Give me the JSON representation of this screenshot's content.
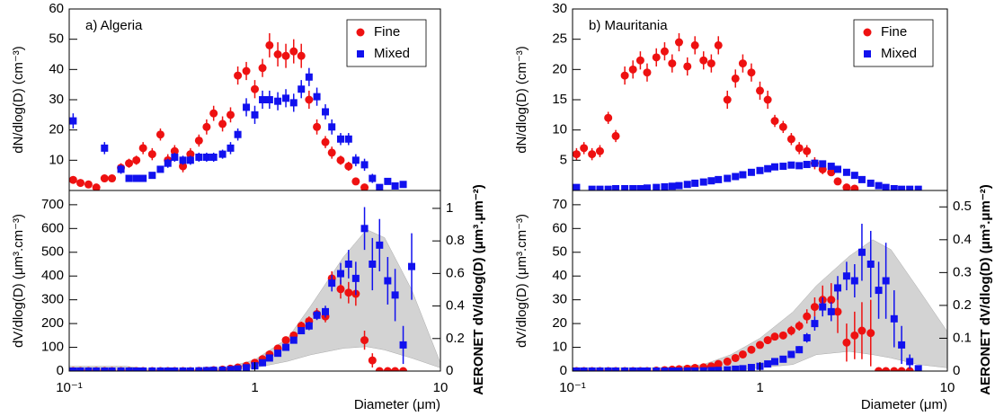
{
  "chart_data": [
    {
      "type": "scatter",
      "panel_label": "a) Algeria",
      "ylabel": "dN/dlog(D) (cm⁻³)",
      "xlog": true,
      "xlim": [
        0.1,
        10
      ],
      "ylim": [
        0,
        60
      ],
      "yticks": [
        10,
        20,
        30,
        40,
        50,
        60
      ],
      "legend": "upper right",
      "x": [
        0.105,
        0.115,
        0.127,
        0.14,
        0.155,
        0.17,
        0.19,
        0.21,
        0.23,
        0.25,
        0.28,
        0.31,
        0.34,
        0.37,
        0.41,
        0.45,
        0.5,
        0.55,
        0.6,
        0.67,
        0.74,
        0.81,
        0.9,
        1.0,
        1.1,
        1.2,
        1.33,
        1.47,
        1.62,
        1.78,
        1.96,
        2.16,
        2.4,
        2.6,
        2.9,
        3.2,
        3.5,
        3.9,
        4.3,
        4.7,
        5.2,
        5.7,
        6.3,
        7.0
      ],
      "series": [
        {
          "name": "Fine",
          "color": "#ee1111",
          "marker": "circle",
          "values": [
            3.5,
            2.5,
            2,
            1,
            4,
            4,
            7.5,
            9,
            10,
            14,
            12,
            18.5,
            10,
            13,
            8,
            12,
            16.5,
            21,
            25.5,
            22,
            25,
            38,
            39.5,
            33.5,
            40.5,
            48,
            45,
            44.5,
            46,
            44.5,
            30,
            21,
            16,
            12.5,
            10,
            8,
            3,
            1,
            null,
            null,
            null,
            null,
            null,
            null
          ],
          "errors": [
            1,
            1,
            1,
            1,
            1,
            1,
            1.5,
            1.5,
            1.5,
            2,
            2,
            2,
            2,
            2,
            2,
            2,
            2,
            2.5,
            2.5,
            2.5,
            2.5,
            3,
            3,
            3,
            3,
            4,
            4,
            4,
            4,
            4,
            3,
            2.5,
            2,
            2,
            1.5,
            1.5,
            1,
            1,
            null,
            null,
            null,
            null,
            null,
            null
          ]
        },
        {
          "name": "Mixed",
          "color": "#1111ee",
          "marker": "square",
          "values": [
            23,
            null,
            null,
            null,
            14,
            null,
            7,
            4,
            4,
            4,
            5,
            7,
            9,
            11,
            10,
            10,
            11,
            11,
            11,
            12,
            14,
            18.5,
            27.5,
            25,
            30,
            30,
            29.5,
            30.5,
            29,
            33.5,
            37.5,
            31,
            26,
            21,
            17,
            17,
            10,
            8.5,
            4,
            1,
            3,
            1.5,
            2,
            null
          ],
          "errors": [
            2.5,
            null,
            null,
            null,
            2,
            null,
            1.5,
            1,
            1,
            1,
            1,
            1,
            1.5,
            1.5,
            1.5,
            1.5,
            1.5,
            1.5,
            1.5,
            1.5,
            2,
            2,
            3,
            3,
            3,
            3,
            3,
            3,
            3,
            3,
            3,
            3,
            2.5,
            2.5,
            2,
            2,
            2,
            2,
            1.5,
            1,
            1,
            1,
            1,
            null
          ]
        }
      ]
    },
    {
      "type": "scatter",
      "ylabel": "dV/dlog(D) (μm³.cm⁻³)",
      "y2label": "AERONET dV/dlog(D) (μm³.μm⁻²)",
      "xlabel": "Diameter (μm)",
      "xlog": true,
      "xlim": [
        0.1,
        10
      ],
      "xticks": [
        {
          "value": 0.1,
          "label": "10⁻¹"
        },
        1,
        10
      ],
      "ylim": [
        0,
        760
      ],
      "yticks": [
        0,
        100,
        200,
        300,
        400,
        500,
        600,
        700
      ],
      "y2lim": [
        0,
        1.11
      ],
      "y2ticks": [
        0,
        0.2,
        0.4,
        0.6,
        0.8,
        1
      ],
      "band": {
        "axis": "y2",
        "color": "#c4c4c4",
        "x": [
          0.1,
          0.2,
          0.3,
          0.5,
          0.7,
          1,
          1.5,
          2,
          3,
          4,
          5,
          7,
          10
        ],
        "upper": [
          0.03,
          0.03,
          0.01,
          0.01,
          0.02,
          0.07,
          0.2,
          0.4,
          0.7,
          0.87,
          0.82,
          0.5,
          0.05
        ],
        "lower": [
          0,
          0,
          0,
          0,
          0,
          0.02,
          0.06,
          0.1,
          0.14,
          0.15,
          0.13,
          0.08,
          0.02
        ]
      },
      "x": [
        0.105,
        0.115,
        0.127,
        0.14,
        0.155,
        0.17,
        0.19,
        0.21,
        0.23,
        0.25,
        0.28,
        0.31,
        0.34,
        0.37,
        0.41,
        0.45,
        0.5,
        0.55,
        0.6,
        0.67,
        0.74,
        0.81,
        0.9,
        1.0,
        1.1,
        1.2,
        1.33,
        1.47,
        1.62,
        1.78,
        1.96,
        2.16,
        2.4,
        2.6,
        2.9,
        3.2,
        3.5,
        3.9,
        4.3,
        4.7,
        5.2,
        5.7,
        6.3,
        7.0
      ],
      "series": [
        {
          "name": "Fine",
          "color": "#ee1111",
          "marker": "circle",
          "values": [
            0,
            0,
            0,
            0,
            0,
            0,
            0,
            0,
            0,
            0,
            0,
            0,
            0,
            0,
            0,
            0,
            1,
            2,
            4,
            6,
            10,
            15,
            22,
            35,
            50,
            70,
            95,
            130,
            150,
            190,
            210,
            240,
            230,
            390,
            345,
            330,
            325,
            130,
            45,
            0,
            0,
            0,
            0,
            null
          ],
          "errors": [
            0,
            0,
            0,
            0,
            0,
            0,
            0,
            0,
            0,
            0,
            0,
            0,
            0,
            0,
            0,
            0,
            0,
            0,
            1,
            1,
            2,
            2,
            3,
            4,
            5,
            7,
            9,
            12,
            15,
            18,
            20,
            25,
            25,
            30,
            40,
            45,
            50,
            40,
            30,
            0,
            0,
            0,
            0,
            null
          ]
        },
        {
          "name": "Mixed",
          "color": "#1111ee",
          "marker": "square",
          "values": [
            0,
            0,
            0,
            0,
            0,
            0,
            0,
            0,
            0,
            0,
            0,
            0,
            0,
            0,
            0,
            0,
            1,
            2,
            3,
            4,
            6,
            9,
            14,
            22,
            35,
            55,
            75,
            100,
            130,
            170,
            190,
            235,
            250,
            370,
            410,
            450,
            390,
            600,
            450,
            530,
            380,
            320,
            110,
            440
          ],
          "errors": [
            0,
            0,
            0,
            0,
            0,
            0,
            0,
            0,
            0,
            0,
            0,
            0,
            0,
            0,
            0,
            0,
            0,
            0,
            0,
            1,
            1,
            2,
            2,
            3,
            4,
            5,
            7,
            9,
            12,
            15,
            18,
            20,
            25,
            35,
            45,
            60,
            70,
            90,
            110,
            110,
            100,
            110,
            80,
            140
          ]
        }
      ]
    },
    {
      "type": "scatter",
      "panel_label": "b) Mauritania",
      "ylabel": "dN/dlog(D) (cm⁻³)",
      "xlog": true,
      "xlim": [
        0.1,
        10
      ],
      "ylim": [
        0,
        30
      ],
      "yticks": [
        5,
        10,
        15,
        20,
        25,
        30
      ],
      "legend": "upper right",
      "x": [
        0.105,
        0.115,
        0.127,
        0.14,
        0.155,
        0.17,
        0.19,
        0.21,
        0.23,
        0.25,
        0.28,
        0.31,
        0.34,
        0.37,
        0.41,
        0.45,
        0.5,
        0.55,
        0.6,
        0.67,
        0.74,
        0.81,
        0.9,
        1.0,
        1.1,
        1.2,
        1.33,
        1.47,
        1.62,
        1.78,
        1.96,
        2.16,
        2.4,
        2.6,
        2.9,
        3.2,
        3.5,
        3.9,
        4.3,
        4.7,
        5.2,
        5.7,
        6.3,
        7.0
      ],
      "series": [
        {
          "name": "Fine",
          "color": "#ee1111",
          "marker": "circle",
          "values": [
            6,
            7,
            6,
            6.5,
            12,
            9,
            19,
            20,
            21.5,
            19.5,
            22,
            23,
            21,
            24.5,
            20.5,
            24,
            21.5,
            21,
            24,
            15,
            18.5,
            21,
            19.5,
            16.5,
            15,
            11.5,
            10.5,
            8.5,
            7,
            6.5,
            4.5,
            3.5,
            3,
            1.5,
            0.5,
            0.3,
            null,
            null,
            null,
            null,
            null,
            null,
            null,
            null
          ],
          "errors": [
            1,
            1,
            1,
            1,
            1,
            1,
            1.5,
            1.5,
            1.5,
            1.5,
            1.5,
            1.5,
            1.5,
            1.5,
            1.5,
            1.5,
            1.5,
            1.5,
            1.5,
            1.5,
            1.5,
            1.5,
            1.5,
            1.5,
            1.5,
            1,
            1,
            1,
            1,
            1,
            1,
            0.8,
            0.5,
            0.5,
            0.3,
            0.3,
            null,
            null,
            null,
            null,
            null,
            null,
            null,
            null
          ]
        },
        {
          "name": "Mixed",
          "color": "#1111ee",
          "marker": "square",
          "values": [
            0.5,
            null,
            0.2,
            0.2,
            0.2,
            0.3,
            0.3,
            0.3,
            0.3,
            0.4,
            0.5,
            0.6,
            0.7,
            0.8,
            1,
            1.2,
            1.4,
            1.6,
            1.8,
            2,
            2.3,
            2.6,
            3,
            3.3,
            3.6,
            3.9,
            4,
            4.2,
            4.1,
            4.3,
            4.5,
            4.4,
            4,
            3.5,
            3,
            2.5,
            1.8,
            1.2,
            0.8,
            0.5,
            0.3,
            0.2,
            0.2,
            0.2
          ]
        }
      ]
    },
    {
      "type": "scatter",
      "ylabel": "dV/dlog(D) (μm³.cm⁻³)",
      "y2label": "AERONET dV/dlog(D) (μm³.μm⁻²)",
      "xlabel": "Diameter (μm)",
      "xlog": true,
      "xlim": [
        0.1,
        10
      ],
      "xticks": [
        {
          "value": 0.1,
          "label": "10⁻¹"
        },
        1,
        10
      ],
      "ylim": [
        0,
        76
      ],
      "yticks": [
        0,
        10,
        20,
        30,
        40,
        50,
        60,
        70
      ],
      "y2lim": [
        0,
        0.55
      ],
      "y2ticks": [
        0,
        0.1,
        0.2,
        0.3,
        0.4,
        0.5
      ],
      "band": {
        "axis": "y2",
        "color": "#c4c4c4",
        "x": [
          0.1,
          0.2,
          0.3,
          0.5,
          0.7,
          1,
          1.5,
          2,
          3,
          4,
          5,
          7,
          10
        ],
        "upper": [
          0.01,
          0.01,
          0.01,
          0.02,
          0.05,
          0.1,
          0.18,
          0.26,
          0.35,
          0.4,
          0.37,
          0.25,
          0.12
        ],
        "lower": [
          0,
          0,
          0,
          0,
          0,
          0.01,
          0.02,
          0.05,
          0.06,
          0.05,
          0.04,
          0.02,
          0.01
        ]
      },
      "x": [
        0.105,
        0.115,
        0.127,
        0.14,
        0.155,
        0.17,
        0.19,
        0.21,
        0.23,
        0.25,
        0.28,
        0.31,
        0.34,
        0.37,
        0.41,
        0.45,
        0.5,
        0.55,
        0.6,
        0.67,
        0.74,
        0.81,
        0.9,
        1.0,
        1.1,
        1.2,
        1.33,
        1.47,
        1.62,
        1.78,
        1.96,
        2.16,
        2.4,
        2.6,
        2.9,
        3.2,
        3.5,
        3.9,
        4.3,
        4.7,
        5.2,
        5.7,
        6.3,
        7.0
      ],
      "series": [
        {
          "name": "Fine",
          "color": "#ee1111",
          "marker": "circle",
          "values": [
            0,
            0,
            0,
            0,
            0,
            0,
            0,
            0,
            0,
            0,
            0.2,
            0.4,
            0.6,
            0.8,
            1,
            1.3,
            1.6,
            2,
            3,
            4,
            5.5,
            7,
            9,
            11,
            13,
            14.5,
            15,
            17,
            19,
            23,
            27,
            30,
            30,
            25,
            12,
            15,
            17,
            16,
            0,
            0,
            0,
            0,
            0,
            null
          ],
          "errors": [
            0,
            0,
            0,
            0,
            0,
            0,
            0,
            0,
            0,
            0,
            0,
            0,
            0,
            0,
            0,
            0,
            0,
            0,
            0.5,
            0.5,
            0.5,
            0.5,
            1,
            1,
            1,
            1,
            1.5,
            2,
            2,
            3,
            4,
            6,
            7,
            9,
            8,
            10,
            12,
            14,
            0,
            0,
            0,
            0,
            0,
            null
          ]
        },
        {
          "name": "Mixed",
          "color": "#1111ee",
          "marker": "square",
          "values": [
            0,
            0,
            0,
            0,
            0,
            0,
            0,
            0,
            0,
            0,
            0,
            0,
            0,
            0,
            0,
            0,
            0.1,
            0.2,
            0.3,
            0.5,
            0.8,
            1,
            1.5,
            2,
            3,
            4,
            5,
            7,
            9,
            14,
            20,
            27,
            25,
            35,
            40,
            38,
            50,
            45,
            34,
            38,
            22,
            11,
            4,
            1
          ],
          "errors": [
            0,
            0,
            0,
            0,
            0,
            0,
            0,
            0,
            0,
            0,
            0,
            0,
            0,
            0,
            0,
            0,
            0,
            0,
            0,
            0,
            0,
            0,
            0,
            0.5,
            0.5,
            0.5,
            1,
            1,
            1.5,
            2,
            3,
            4,
            4,
            5,
            6,
            7,
            12,
            14,
            12,
            16,
            12,
            8,
            3,
            1
          ]
        }
      ]
    }
  ]
}
